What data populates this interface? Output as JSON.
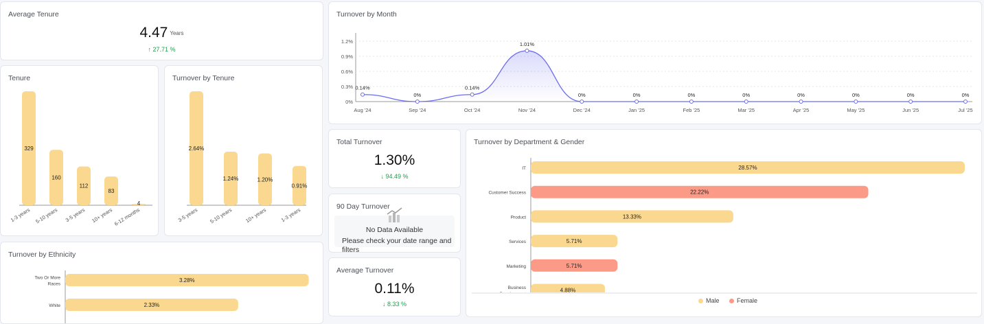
{
  "avg_tenure": {
    "title": "Average Tenure",
    "value": "4.47",
    "unit": "Years",
    "delta": "27.71 %"
  },
  "tenure": {
    "title": "Tenure",
    "chart_data": {
      "type": "bar",
      "categories": [
        "1-3 years",
        "5-10 years",
        "3-5 years",
        "10+ years",
        "6-12 months"
      ],
      "values": [
        329,
        160,
        112,
        83,
        4
      ],
      "labels": [
        "329",
        "160",
        "112",
        "83",
        "4"
      ],
      "ylim": [
        0,
        329
      ]
    }
  },
  "turnover_tenure": {
    "title": "Turnover by Tenure",
    "chart_data": {
      "type": "bar",
      "categories": [
        "3-5 years",
        "5-10 years",
        "10+ years",
        "1-3 years"
      ],
      "values": [
        2.64,
        1.24,
        1.2,
        0.91
      ],
      "labels": [
        "2.64%",
        "1.24%",
        "1.20%",
        "0.91%"
      ],
      "ylim": [
        0,
        2.64
      ]
    }
  },
  "turnover_month": {
    "title": "Turnover by Month",
    "chart_data": {
      "type": "line",
      "x": [
        "Aug '24",
        "Sep '24",
        "Oct '24",
        "Nov '24",
        "Dec '24",
        "Jan '25",
        "Feb '25",
        "Mar '25",
        "Apr '25",
        "May '25",
        "Jun '25",
        "Jul '25"
      ],
      "values": [
        0.14,
        0,
        0.14,
        1.01,
        0,
        0,
        0,
        0,
        0,
        0,
        0,
        0
      ],
      "labels": [
        "0.14%",
        "0%",
        "0.14%",
        "1.01%",
        "0%",
        "0%",
        "0%",
        "0%",
        "0%",
        "0%",
        "0%",
        "0%"
      ],
      "yticks": [
        "0%",
        "0.3%",
        "0.6%",
        "0.9%",
        "1.2%"
      ],
      "ylim": [
        0,
        1.2
      ]
    }
  },
  "total_turnover": {
    "title": "Total Turnover",
    "value": "1.30%",
    "delta": "94.49 %"
  },
  "day90": {
    "title": "90 Day Turnover",
    "nodata": "No Data Available",
    "hint": "Please check your date range and filters"
  },
  "avg_turnover": {
    "title": "Average Turnover",
    "value": "0.11%",
    "delta": "8.33 %"
  },
  "ethnicity": {
    "title": "Turnover by Ethnicity",
    "chart_data": {
      "type": "bar",
      "orientation": "horizontal",
      "categories": [
        "Two Or More Races",
        "White"
      ],
      "values": [
        3.28,
        2.33
      ],
      "labels": [
        "3.28%",
        "2.33%"
      ],
      "xlim": [
        0,
        3.7
      ]
    }
  },
  "dept": {
    "title": "Turnover by Department & Gender",
    "chart_data": {
      "type": "bar",
      "orientation": "horizontal",
      "categories": [
        "IT",
        "Customer Success",
        "Product",
        "Services",
        "Marketing",
        "Business Development"
      ],
      "values": [
        28.57,
        22.22,
        13.33,
        5.71,
        5.71,
        4.88
      ],
      "labels": [
        "28.57%",
        "22.22%",
        "13.33%",
        "5.71%",
        "5.71%",
        "4.88%"
      ],
      "gender": [
        "Male",
        "Female",
        "Male",
        "Male",
        "Female",
        "Male"
      ],
      "legend": [
        "Male",
        "Female"
      ],
      "xlim": [
        0,
        28.57
      ]
    }
  },
  "colors": {
    "male": "#fad88f",
    "female": "#fa9a87",
    "line": "#6c6cf0",
    "up": "#1d9e4a"
  }
}
